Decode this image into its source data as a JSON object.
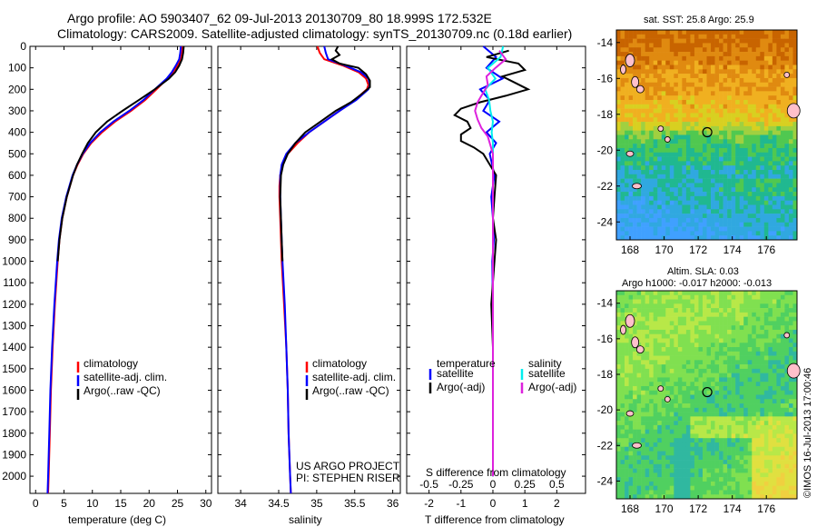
{
  "header": {
    "line1": "Argo profile: AO 5903407_62 09-Jul-2013 20130709_80 18.999S 172.532E",
    "line2": "Climatology: CARS2009. Satellite-adjusted climatology: synTS_20130709.nc (0.18d earlier)"
  },
  "colors": {
    "climatology": "#ff0000",
    "satellite": "#0000ff",
    "argo": "#000000",
    "satellite_s": "#00eeee",
    "argo_s": "#dd22dd",
    "land": "#ffc0cb"
  },
  "chart_data": [
    {
      "type": "line",
      "id": "temperature",
      "xlabel": "temperature (deg C)",
      "xlim": [
        -1,
        31
      ],
      "xticks": [
        0,
        5,
        10,
        15,
        20,
        25,
        30
      ],
      "ylim": [
        0,
        2080
      ],
      "yticks": [
        0,
        100,
        200,
        300,
        400,
        500,
        600,
        700,
        800,
        900,
        1000,
        1100,
        1200,
        1300,
        1400,
        1500,
        1600,
        1700,
        1800,
        1900,
        2000
      ],
      "legend": [
        "climatology",
        "satellite-adj. clim.",
        "Argo(..raw -QC)"
      ],
      "series": [
        {
          "name": "climatology",
          "depth": [
            0,
            30,
            60,
            90,
            120,
            150,
            200,
            250,
            300,
            350,
            400,
            450,
            500,
            550,
            600,
            700,
            800,
            900,
            1000,
            1200,
            1400,
            1600,
            1800,
            2000,
            2080
          ],
          "values": [
            25.9,
            25.8,
            25.6,
            25.0,
            24.2,
            23.2,
            21.3,
            19.3,
            16.8,
            14.0,
            11.7,
            9.8,
            8.4,
            7.4,
            6.6,
            5.5,
            4.7,
            4.2,
            3.9,
            3.4,
            3.0,
            2.7,
            2.5,
            2.3,
            2.2
          ]
        },
        {
          "name": "satellite",
          "depth": [
            0,
            30,
            60,
            90,
            120,
            150,
            200,
            250,
            300,
            350,
            400,
            450,
            500,
            550,
            600,
            700,
            800,
            900,
            1000,
            1200,
            1400,
            1600,
            1800,
            2000,
            2080
          ],
          "values": [
            25.6,
            25.5,
            25.3,
            24.7,
            24.0,
            23.1,
            21.0,
            19.0,
            16.5,
            13.7,
            11.4,
            9.6,
            8.3,
            7.3,
            6.5,
            5.4,
            4.6,
            4.1,
            3.8,
            3.3,
            2.9,
            2.6,
            2.4,
            2.2,
            2.1
          ]
        },
        {
          "name": "argo",
          "depth": [
            0,
            30,
            60,
            90,
            120,
            150,
            200,
            250,
            300,
            350,
            400,
            450,
            500,
            550,
            600,
            700,
            800,
            900,
            1000
          ],
          "values": [
            26.1,
            26.0,
            25.8,
            25.3,
            24.6,
            23.5,
            21.0,
            18.2,
            15.3,
            12.6,
            10.6,
            9.2,
            8.2,
            7.3,
            6.6,
            5.5,
            4.7,
            4.2,
            3.9
          ]
        }
      ]
    },
    {
      "type": "line",
      "id": "salinity",
      "xlabel": "salinity",
      "xlim": [
        33.7,
        36.1
      ],
      "xticks": [
        34,
        34.5,
        35,
        35.5,
        36
      ],
      "ylim": [
        0,
        2080
      ],
      "legend": [
        "climatology",
        "satellite-adj. clim.",
        "Argo(..raw -QC)"
      ],
      "series": [
        {
          "name": "climatology",
          "depth": [
            0,
            30,
            60,
            90,
            120,
            150,
            180,
            200,
            250,
            300,
            350,
            400,
            450,
            500,
            550,
            600,
            650,
            700,
            800,
            900,
            1000,
            1200,
            1400,
            1600,
            1800,
            2000,
            2080
          ],
          "values": [
            35.01,
            35.04,
            35.1,
            35.35,
            35.55,
            35.65,
            35.68,
            35.66,
            35.5,
            35.3,
            35.1,
            34.9,
            34.75,
            34.62,
            34.55,
            34.52,
            34.51,
            34.51,
            34.52,
            34.53,
            34.54,
            34.57,
            34.6,
            34.62,
            34.63,
            34.65,
            34.66
          ]
        },
        {
          "name": "satellite",
          "depth": [
            0,
            30,
            60,
            90,
            120,
            150,
            180,
            200,
            250,
            300,
            350,
            400,
            450,
            500,
            550,
            600,
            650,
            700,
            800,
            900,
            1000,
            1200,
            1400,
            1600,
            1800,
            2000,
            2080
          ],
          "values": [
            35.1,
            35.12,
            35.15,
            35.38,
            35.58,
            35.68,
            35.7,
            35.68,
            35.52,
            35.3,
            35.1,
            34.9,
            34.72,
            34.6,
            34.54,
            34.52,
            34.52,
            34.52,
            34.53,
            34.54,
            34.55,
            34.58,
            34.6,
            34.62,
            34.63,
            34.65,
            34.66
          ]
        },
        {
          "name": "argo",
          "depth": [
            0,
            20,
            40,
            60,
            80,
            100,
            130,
            160,
            190,
            220,
            260,
            300,
            350,
            400,
            450,
            500,
            550,
            600,
            700,
            800,
            900,
            1000
          ],
          "values": [
            35.28,
            35.25,
            35.3,
            35.2,
            35.3,
            35.55,
            35.65,
            35.7,
            35.7,
            35.6,
            35.45,
            35.25,
            35.05,
            34.85,
            34.72,
            34.62,
            34.56,
            34.53,
            34.52,
            34.53,
            34.54,
            34.55
          ]
        }
      ]
    },
    {
      "type": "line",
      "id": "difference",
      "xlabel": "T difference from climatology",
      "xlabel_top": "S difference from climatology",
      "xlim": [
        -2.7,
        2.9
      ],
      "xticks": [
        -2,
        -1,
        0,
        1,
        2
      ],
      "s_ticks_labels": [
        "-0.5",
        "-0.25",
        "0",
        "0.25",
        "0.5"
      ],
      "s_ticks_at_t": [
        -2,
        -1,
        0,
        1,
        2
      ],
      "ylim": [
        0,
        2080
      ],
      "legend_t": [
        "temperature",
        "satellite",
        "Argo(-adj)"
      ],
      "legend_s": [
        "salinity",
        "satellite",
        "Argo(-adj)"
      ],
      "series": [
        {
          "name": "T satellite",
          "depth": [
            0,
            50,
            100,
            150,
            200,
            250,
            300,
            350,
            400,
            450,
            500,
            600,
            700,
            800,
            900,
            1000,
            1200,
            1400,
            1600,
            1800,
            2000
          ],
          "values": [
            -0.3,
            0.1,
            -0.2,
            0.3,
            -0.4,
            -0.1,
            -0.3,
            0.2,
            -0.2,
            0.1,
            -0.1,
            0.05,
            -0.05,
            0.0,
            0.03,
            -0.02,
            0.0,
            0.0,
            0.0,
            0.0,
            0.0
          ]
        },
        {
          "name": "T argo",
          "depth": [
            20,
            50,
            80,
            110,
            140,
            170,
            200,
            230,
            260,
            290,
            320,
            350,
            380,
            410,
            440,
            470,
            500,
            550,
            600,
            700,
            800,
            900,
            1000,
            1200,
            1400,
            1600,
            1800,
            2000
          ],
          "values": [
            0.5,
            -0.2,
            0.8,
            1.0,
            0.3,
            0.7,
            1.1,
            0.4,
            -0.4,
            -1.0,
            -1.2,
            -0.8,
            -0.7,
            -1.0,
            -1.0,
            -0.6,
            -0.3,
            -0.1,
            0.1,
            0.05,
            0.0,
            0.1,
            0.05,
            -0.05,
            0.0,
            0.0,
            0.0,
            0.0
          ]
        },
        {
          "name": "S satellite",
          "depth": [
            0,
            50,
            100,
            150,
            200,
            250,
            300,
            350,
            400,
            450,
            500,
            600,
            700,
            800,
            900,
            1000,
            1200,
            1400,
            1600,
            1800,
            2000
          ],
          "values": [
            0.08,
            0.06,
            -0.04,
            0.02,
            -0.06,
            -0.03,
            -0.02,
            0.0,
            -0.01,
            0.0,
            0.0,
            0.0,
            0.0,
            0.0,
            0.0,
            0.0,
            0.0,
            0.0,
            0.0,
            0.0,
            0.0
          ]
        },
        {
          "name": "S argo",
          "depth": [
            20,
            60,
            100,
            140,
            180,
            220,
            260,
            300,
            340,
            380,
            420,
            460,
            500,
            550,
            600,
            700,
            800,
            900,
            1000,
            1200,
            1400,
            1600,
            1800,
            2000
          ],
          "values": [
            0.05,
            0.1,
            0.02,
            -0.05,
            -0.04,
            -0.08,
            -0.12,
            -0.14,
            -0.12,
            -0.09,
            -0.04,
            -0.02,
            0.0,
            0.0,
            0.0,
            0.0,
            0.0,
            0.0,
            0.0,
            0.0,
            0.0,
            0.0,
            0.0,
            0.0
          ]
        }
      ]
    },
    {
      "type": "heatmap",
      "id": "sst_map",
      "title": "sat. SST: 25.8 Argo: 25.9",
      "lon_range": [
        167.2,
        177.8
      ],
      "lat_range": [
        -25,
        -13.3
      ],
      "xticks": [
        168,
        170,
        172,
        174,
        176
      ],
      "yticks": [
        -14,
        -16,
        -18,
        -20,
        -22,
        -24
      ],
      "argo_position": {
        "lon": 172.532,
        "lat": -18.999
      },
      "color_scale": [
        "#c86400",
        "#e08a10",
        "#f0b020",
        "#d8d020",
        "#a0d040",
        "#50c850",
        "#20b890",
        "#30a8e0",
        "#40a0ff"
      ]
    },
    {
      "type": "heatmap",
      "id": "sla_map",
      "title": "Altim. SLA: 0.03",
      "subtitle": "Argo h1000: -0.017 h2000: -0.013",
      "lon_range": [
        167.2,
        177.8
      ],
      "lat_range": [
        -25,
        -13.3
      ],
      "xticks": [
        168,
        170,
        172,
        174,
        176
      ],
      "yticks": [
        -14,
        -16,
        -18,
        -20,
        -22,
        -24
      ],
      "argo_position": {
        "lon": 172.532,
        "lat": -18.999
      },
      "color_scale": [
        "#30b8a0",
        "#50d060",
        "#80e050",
        "#b8e848",
        "#e0e040",
        "#f0d040"
      ]
    }
  ],
  "footer": {
    "project": "US ARGO PROJECT",
    "pi": "PI: STEPHEN RISER",
    "side_stamp": "©IMOS 16-Jul-2013 17:00:46"
  }
}
